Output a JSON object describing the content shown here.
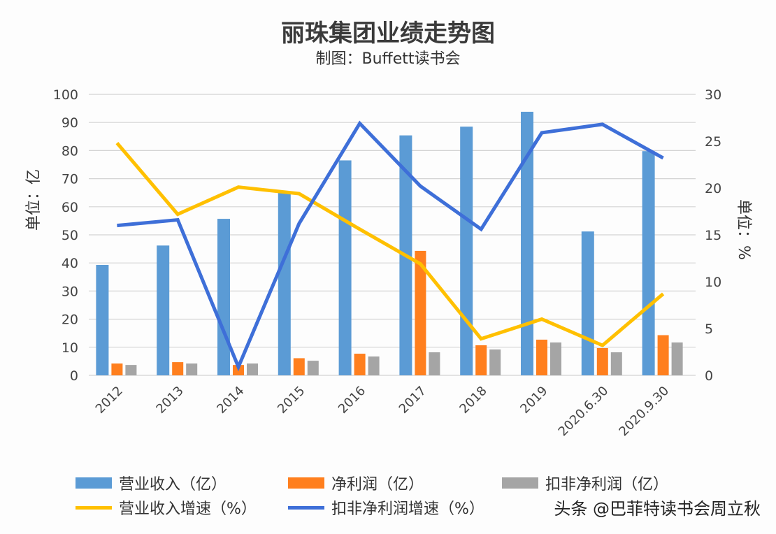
{
  "chart_data": {
    "type": "bar+line",
    "title": "丽珠集团业绩走势图",
    "subtitle": "制图：Buffett读书会",
    "ylabel": "单位：亿",
    "y2label": "单位：%",
    "ylim": [
      0,
      100
    ],
    "y2lim": [
      0,
      30
    ],
    "yticks": [
      "0",
      "10",
      "20",
      "30",
      "40",
      "50",
      "60",
      "70",
      "80",
      "90",
      "100"
    ],
    "y2ticks": [
      "0",
      "5",
      "10",
      "15",
      "20",
      "25",
      "30"
    ],
    "grid": true,
    "legend_position": "bottom",
    "categories": [
      "2012",
      "2013",
      "2014",
      "2015",
      "2016",
      "2017",
      "2018",
      "2019",
      "2020.6.30",
      "2020.9.30"
    ],
    "bar_series": [
      {
        "name": "营业收入（亿）",
        "color": "#5b9bd5",
        "values": [
          39.3,
          46.2,
          55.7,
          65.2,
          76.5,
          85.4,
          88.5,
          93.8,
          51.2,
          79.8
        ]
      },
      {
        "name": "净利润（亿）",
        "color": "#ff7f1e",
        "values": [
          4.2,
          4.7,
          3.7,
          6.1,
          7.7,
          44.3,
          10.7,
          12.7,
          9.7,
          14.3
        ]
      },
      {
        "name": "扣非净利润（亿）",
        "color": "#a5a5a5",
        "values": [
          3.7,
          4.2,
          4.2,
          5.2,
          6.7,
          8.2,
          9.2,
          11.7,
          8.2,
          11.7
        ]
      }
    ],
    "line_series": [
      {
        "name": "营业收入增速（%）",
        "color": "#ffc000",
        "axis": "right",
        "values": [
          24.8,
          17.2,
          20.1,
          19.4,
          15.6,
          11.9,
          3.9,
          6.0,
          3.2,
          8.7
        ]
      },
      {
        "name": "扣非净利润增速（%）",
        "color": "#3e6fd8",
        "axis": "right",
        "values": [
          16.0,
          16.6,
          0.9,
          16.2,
          26.9,
          20.2,
          15.6,
          25.9,
          26.8,
          23.2
        ]
      }
    ]
  },
  "watermark": "头条 @巴菲特读书会周立秋"
}
